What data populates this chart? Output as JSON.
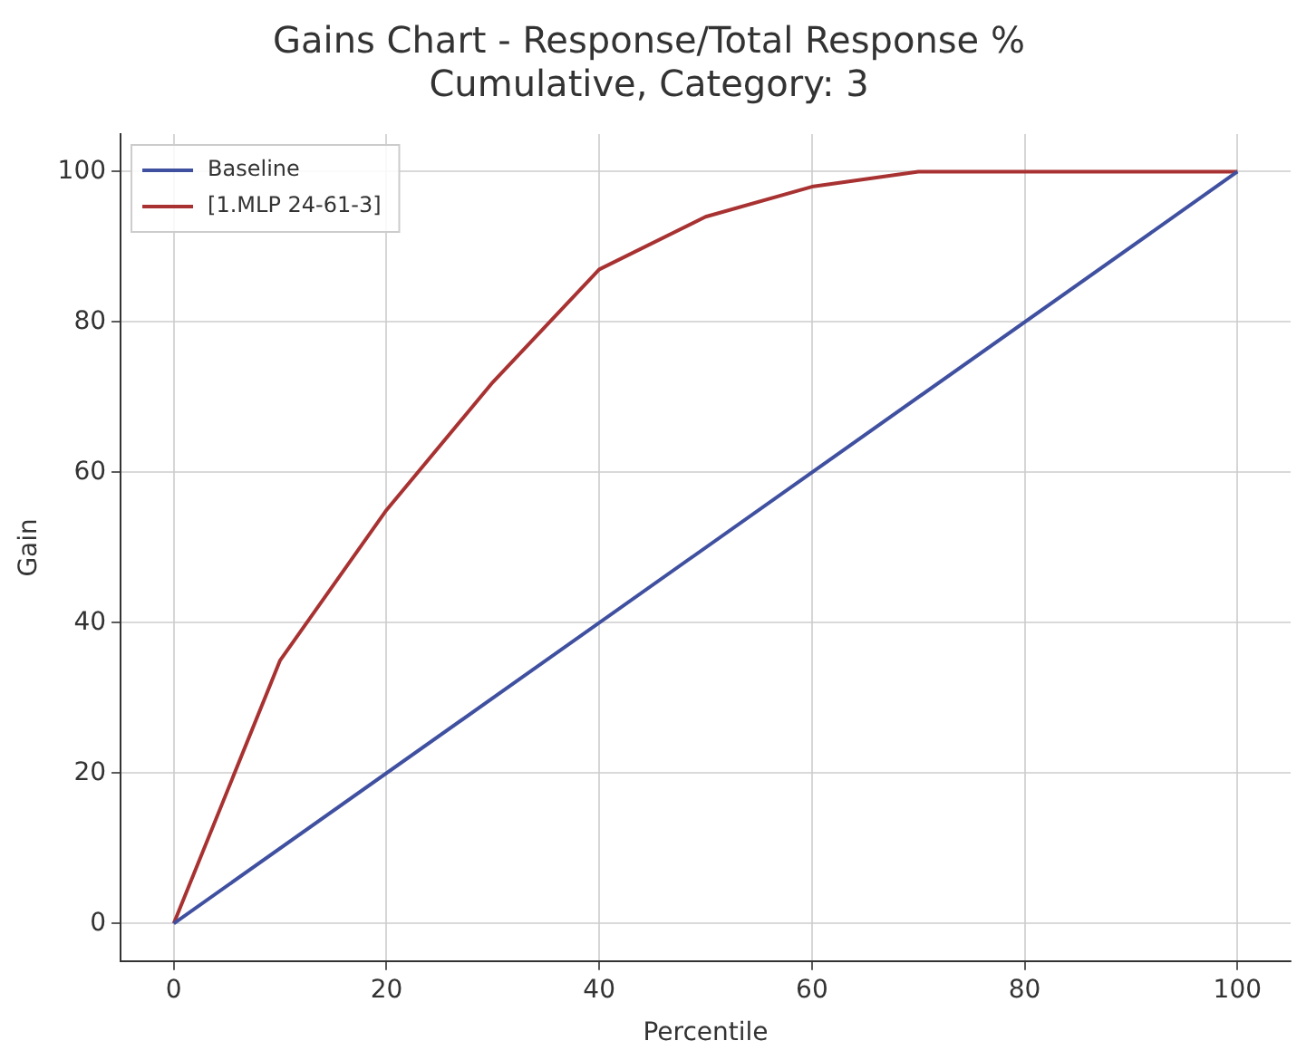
{
  "chart_data": {
    "type": "line",
    "title": "Gains Chart - Response/Total Response %\nCumulative, Category: 3",
    "xlabel": "Percentile",
    "ylabel": "Gain",
    "x": [
      0,
      10,
      20,
      30,
      40,
      50,
      60,
      70,
      80,
      90,
      100
    ],
    "series": [
      {
        "name": "Baseline",
        "color": "#4050a0",
        "x": [
          0,
          100
        ],
        "values": [
          0,
          100
        ]
      },
      {
        "name": "[1.MLP 24-61-3]",
        "color": "#a83232",
        "values": [
          0,
          35,
          55,
          72,
          87,
          94,
          98,
          100,
          100,
          100,
          100
        ]
      }
    ],
    "xlim": [
      -5,
      105
    ],
    "ylim": [
      -5,
      105
    ],
    "xticks": [
      0,
      20,
      40,
      60,
      80,
      100
    ],
    "yticks": [
      0,
      20,
      40,
      60,
      80,
      100
    ],
    "grid": true,
    "legend": "top left",
    "marker": "none",
    "line_style": "solid"
  }
}
